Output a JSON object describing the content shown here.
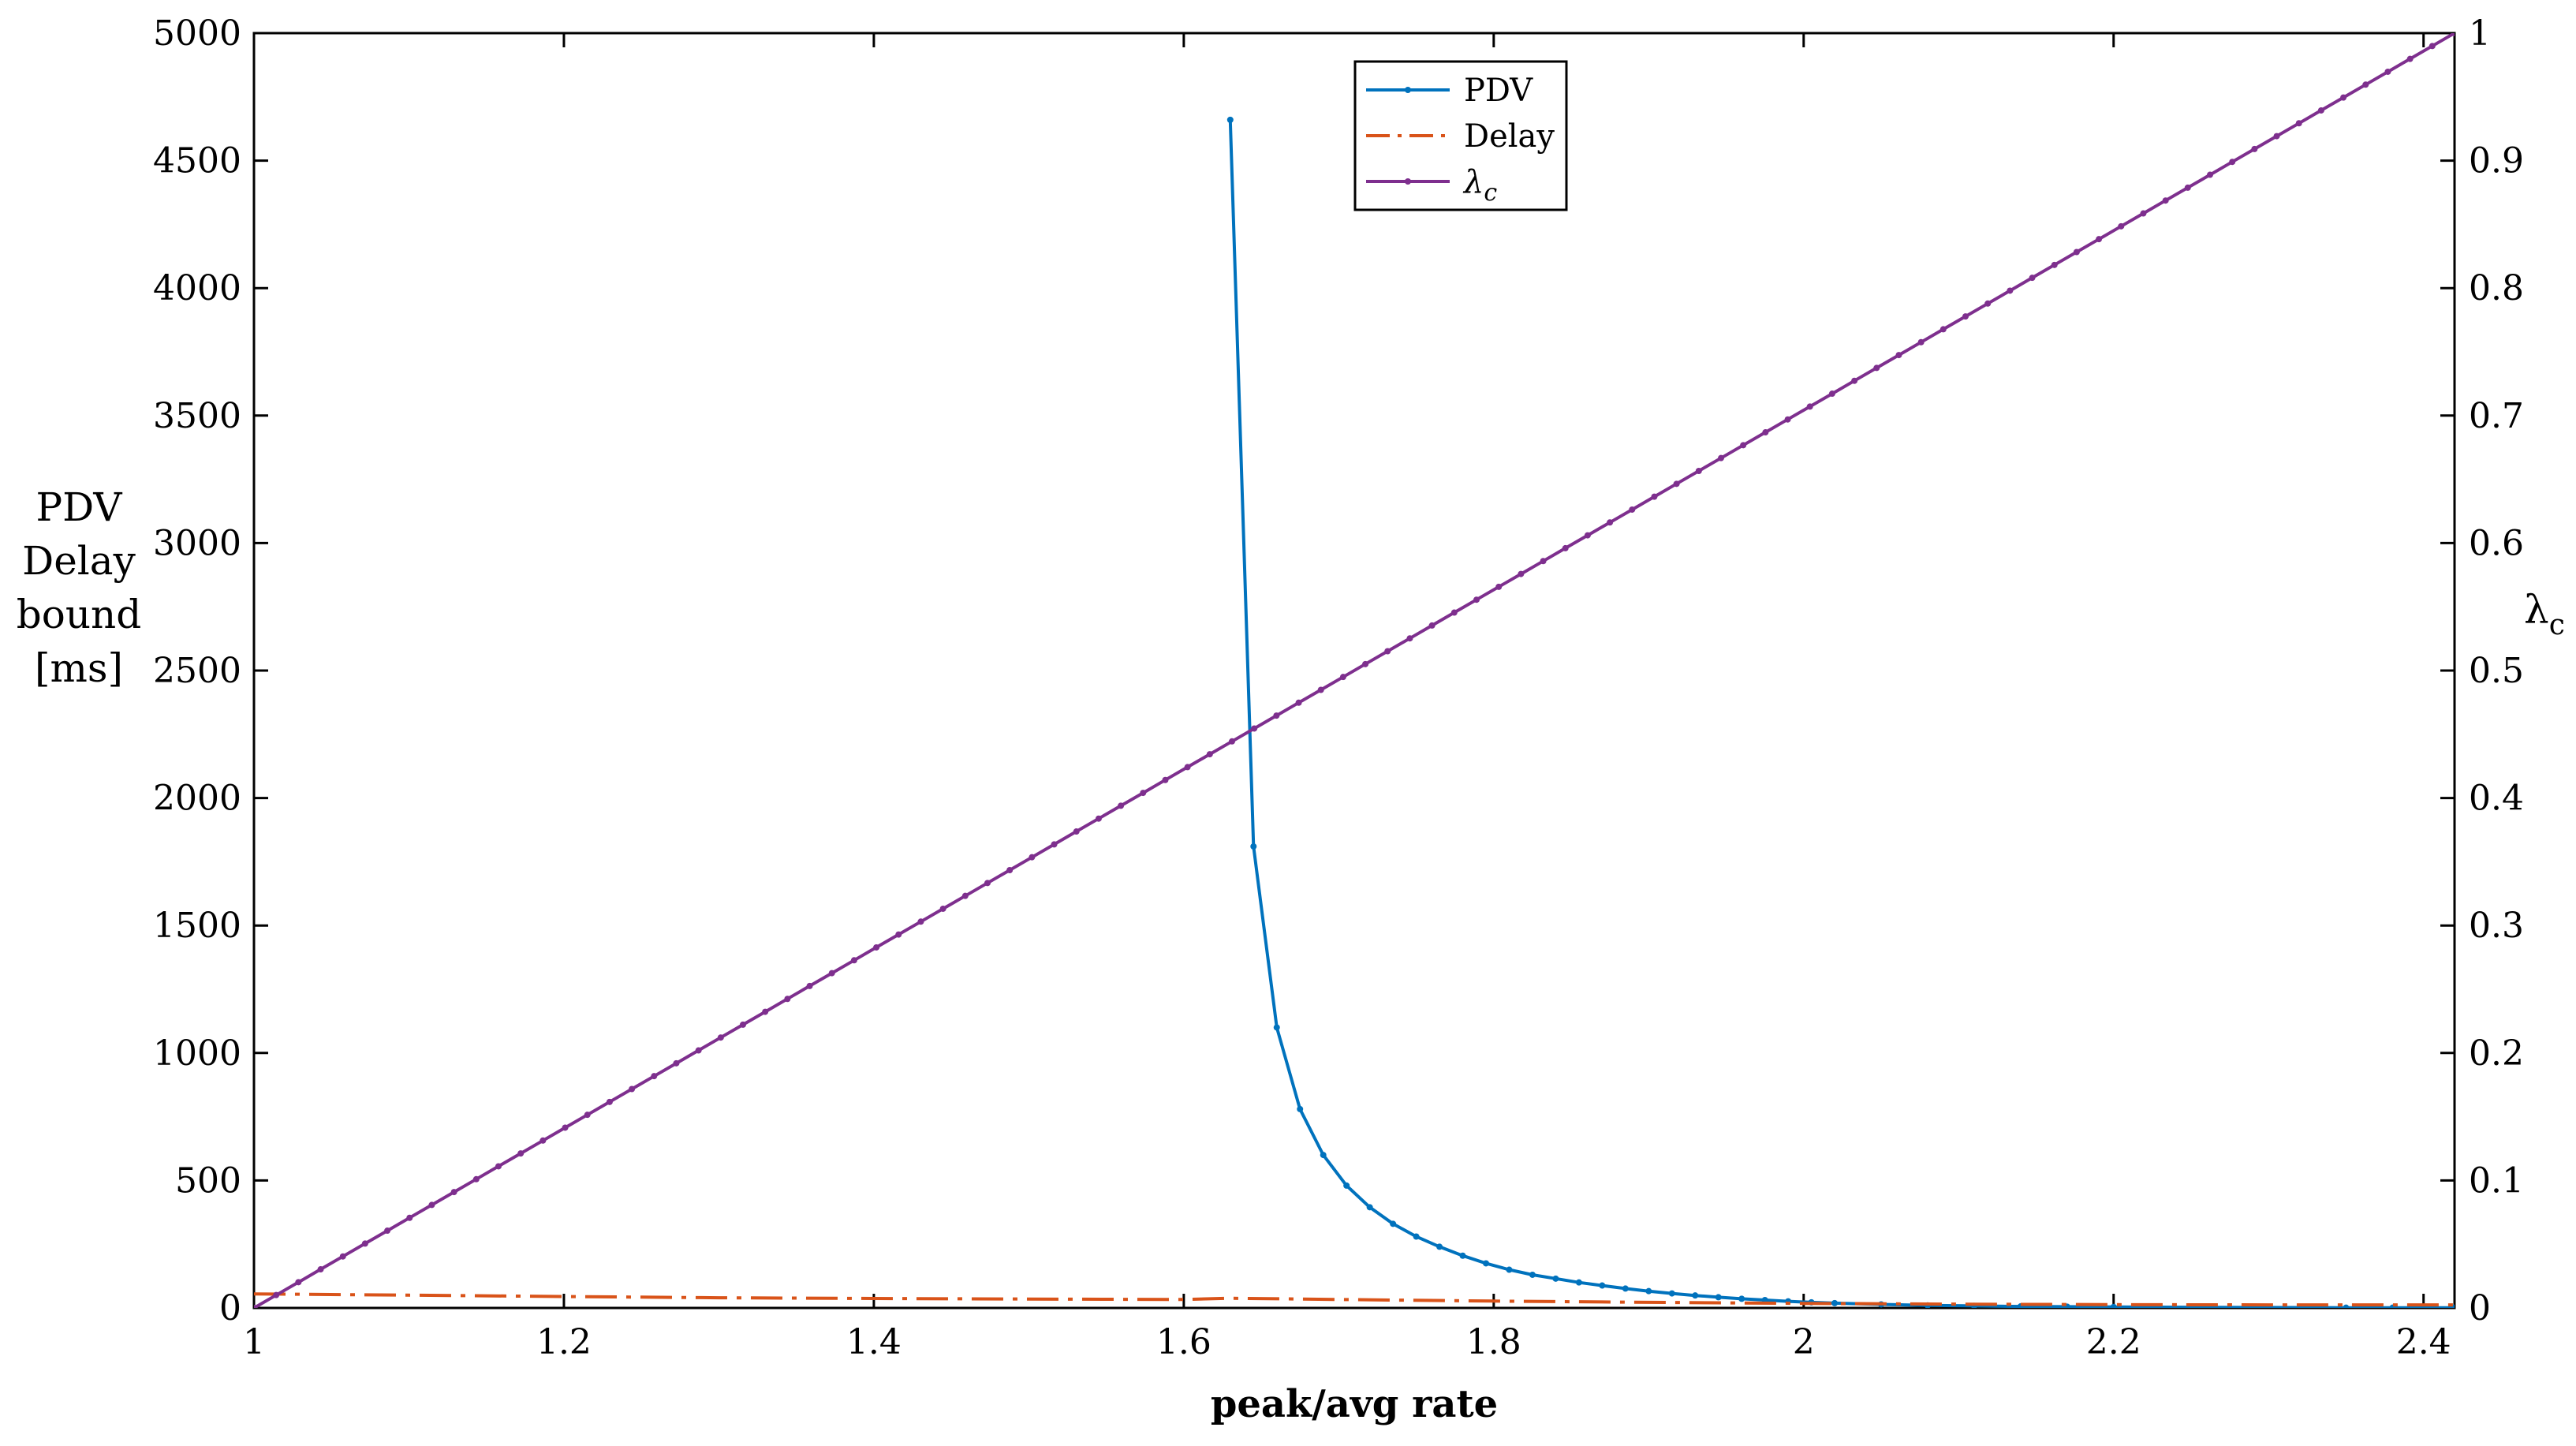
{
  "chart_data": {
    "type": "line",
    "xlabel": "peak/avg rate",
    "ylabel_left": [
      "PDV",
      "Delay",
      "bound",
      "[ms]"
    ],
    "ylabel_right": "λ",
    "ylabel_right_sub": "c",
    "xlim": [
      1,
      2.42
    ],
    "ylim_left": [
      0,
      5000
    ],
    "ylim_right": [
      0,
      1
    ],
    "x_ticks": [
      1,
      1.2,
      1.4,
      1.6,
      1.8,
      2,
      2.2,
      2.4
    ],
    "x_tick_labels": [
      "1",
      "1.2",
      "1.4",
      "1.6",
      "1.8",
      "2",
      "2.2",
      "2.4"
    ],
    "y_left_ticks": [
      0,
      500,
      1000,
      1500,
      2000,
      2500,
      3000,
      3500,
      4000,
      4500,
      5000
    ],
    "y_left_tick_labels": [
      "0",
      "500",
      "1000",
      "1500",
      "2000",
      "2500",
      "3000",
      "3500",
      "4000",
      "4500",
      "5000"
    ],
    "y_right_ticks": [
      0,
      0.1,
      0.2,
      0.3,
      0.4,
      0.5,
      0.6,
      0.7,
      0.8,
      0.9,
      1
    ],
    "y_right_tick_labels": [
      "0",
      "0.1",
      "0.2",
      "0.3",
      "0.4",
      "0.5",
      "0.6",
      "0.7",
      "0.8",
      "0.9",
      "1"
    ],
    "legend": {
      "location": "top-center",
      "entries": [
        {
          "label": "PDV",
          "italic": false
        },
        {
          "label": "Delay",
          "italic": false
        },
        {
          "label": "λ",
          "sub": "c",
          "italic": true
        }
      ]
    },
    "series": [
      {
        "name": "PDV",
        "axis": "left",
        "color": "#0072BD",
        "style": "solid-dots",
        "x": [
          1.63,
          1.645,
          1.66,
          1.675,
          1.69,
          1.705,
          1.72,
          1.735,
          1.75,
          1.765,
          1.78,
          1.795,
          1.81,
          1.825,
          1.84,
          1.855,
          1.87,
          1.885,
          1.9,
          1.915,
          1.93,
          1.945,
          1.96,
          1.975,
          1.99,
          2.005,
          2.02,
          2.05,
          2.08,
          2.11,
          2.14,
          2.17,
          2.2,
          2.23,
          2.26,
          2.29,
          2.32,
          2.35,
          2.38,
          2.42
        ],
        "y": [
          4660,
          1810,
          1100,
          780,
          600,
          480,
          395,
          330,
          280,
          240,
          205,
          175,
          150,
          130,
          115,
          100,
          88,
          76,
          66,
          57,
          49,
          42,
          36,
          31,
          26,
          22,
          19,
          14,
          10,
          8,
          6,
          5,
          4,
          3,
          2.5,
          2,
          1.5,
          1,
          1,
          1
        ]
      },
      {
        "name": "Delay",
        "axis": "left",
        "color": "#D95319",
        "style": "dash-dot",
        "x": [
          1.0,
          1.1,
          1.2,
          1.3,
          1.4,
          1.5,
          1.6,
          1.63,
          1.7,
          1.8,
          1.9,
          2.0,
          2.1,
          2.2,
          2.3,
          2.42
        ],
        "y": [
          55,
          50,
          45,
          40,
          37,
          35,
          33,
          38,
          33,
          27,
          22,
          18,
          15,
          13,
          12,
          12
        ]
      },
      {
        "name": "λc",
        "axis": "right",
        "color": "#7E2F8E",
        "style": "solid-dots",
        "x": [
          1.0,
          2.42
        ],
        "y": [
          0,
          1.0
        ],
        "points": 100
      }
    ]
  }
}
